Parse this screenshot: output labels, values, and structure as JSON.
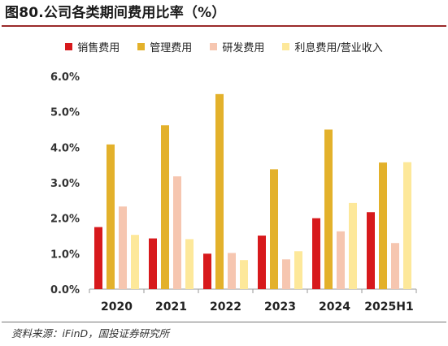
{
  "figure_title": "图80.公司各类期间费用比率（%）",
  "source": "资料来源：iFinD，国投证券研究所",
  "chart_data": {
    "type": "bar",
    "categories": [
      "2020",
      "2021",
      "2022",
      "2023",
      "2024",
      "2025H1"
    ],
    "yticks": [
      "0.0%",
      "1.0%",
      "2.0%",
      "3.0%",
      "4.0%",
      "5.0%",
      "6.0%"
    ],
    "ylim": [
      0,
      6
    ],
    "legend_position": "top-center",
    "grid": false,
    "series": [
      {
        "name": "销售费用",
        "color": "#d7191c",
        "values": [
          1.75,
          1.43,
          1.0,
          1.51,
          2.0,
          2.17
        ]
      },
      {
        "name": "管理费用",
        "color": "#e3b12b",
        "values": [
          4.08,
          4.62,
          5.5,
          3.38,
          4.5,
          3.57
        ]
      },
      {
        "name": "研发费用",
        "color": "#f6c6b0",
        "values": [
          2.33,
          3.18,
          1.02,
          0.84,
          1.63,
          1.3
        ]
      },
      {
        "name": "利息费用/营业收入",
        "color": "#fde89a",
        "values": [
          1.53,
          1.41,
          0.82,
          1.07,
          2.43,
          3.58
        ]
      }
    ]
  }
}
